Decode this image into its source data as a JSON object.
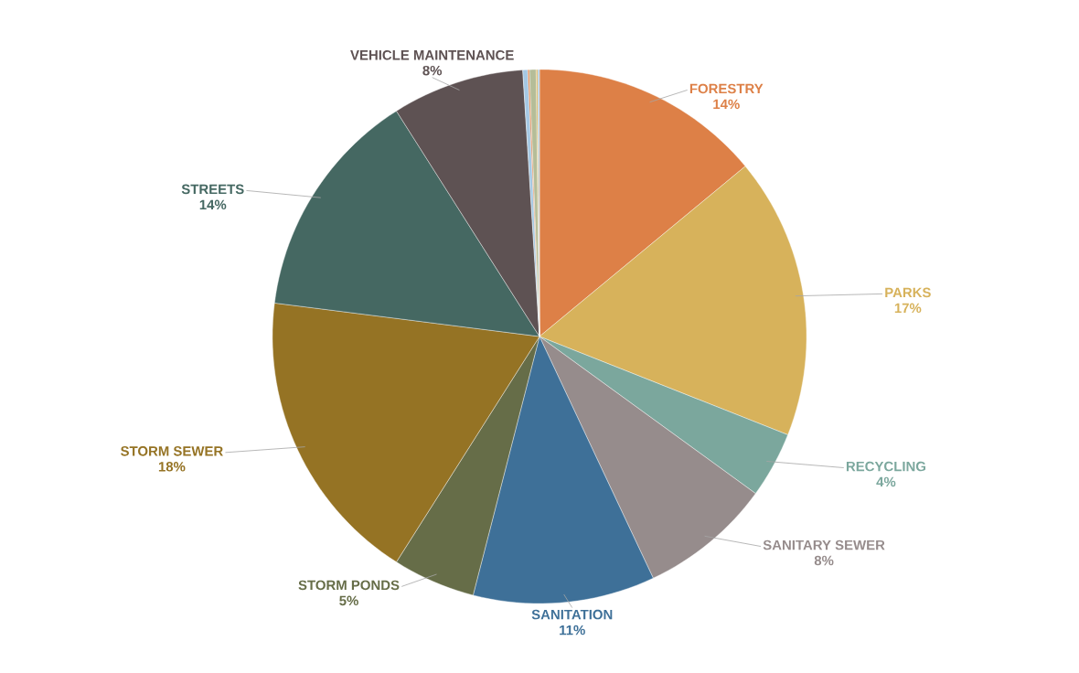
{
  "chart_data": {
    "type": "pie",
    "categories": [
      "FORESTRY",
      "PARKS",
      "RECYCLING",
      "SANITARY SEWER",
      "SANITATION",
      "STORM PONDS",
      "STORM SEWER",
      "STREETS",
      "VEHICLE MAINTENANCE",
      null,
      null,
      null,
      null,
      null
    ],
    "values": [
      14,
      17,
      4,
      8,
      11,
      5,
      18,
      14,
      8,
      0.3,
      0.1,
      0.4,
      0.1,
      0.1
    ],
    "value_labels": [
      "14%",
      "17%",
      "4%",
      "8%",
      "11%",
      "5%",
      "18%",
      "14%",
      "8%",
      null,
      null,
      null,
      null,
      null
    ],
    "colors": [
      "#dd8047",
      "#d7b25b",
      "#7ba79d",
      "#968c8c",
      "#3e7098",
      "#666d48",
      "#957324",
      "#456862",
      "#5e5253",
      "#a5c8e3",
      "#dd8047",
      "#b5bd98",
      "#d7b25b",
      "#a5c8e3"
    ]
  }
}
